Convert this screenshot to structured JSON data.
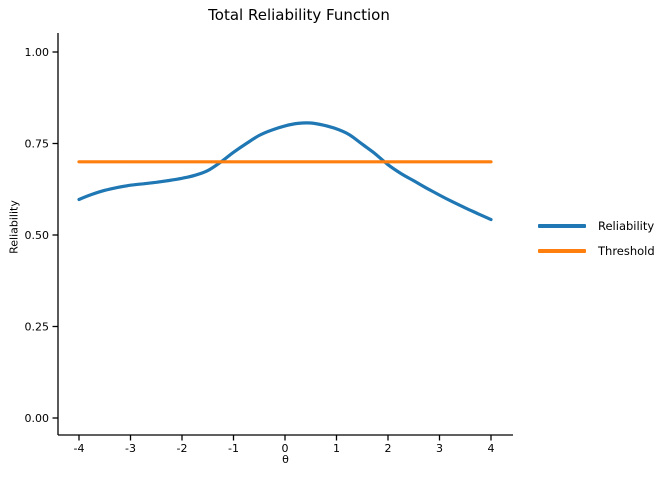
{
  "chart_data": {
    "type": "line",
    "title": "Total Reliability Function",
    "xlabel": "θ",
    "ylabel": "Reliability",
    "xlim": [
      -4,
      4
    ],
    "ylim": [
      0,
      1
    ],
    "grid": false,
    "legend_position": "right-outside",
    "x_ticks": [
      -4,
      -3,
      -2,
      -1,
      0,
      1,
      2,
      3,
      4
    ],
    "y_ticks": [
      0.0,
      0.25,
      0.5,
      0.75,
      1.0
    ],
    "y_tick_labels": [
      "0.00",
      "0.25",
      "0.50",
      "0.75",
      "1.00"
    ],
    "threshold_value": 0.7,
    "series": [
      {
        "name": "Reliability",
        "color": "#1f77b4",
        "x": [
          -4,
          -3.75,
          -3.5,
          -3.25,
          -3,
          -2.75,
          -2.5,
          -2.25,
          -2,
          -1.75,
          -1.5,
          -1.25,
          -1,
          -0.75,
          -0.5,
          -0.25,
          0,
          0.25,
          0.5,
          0.75,
          1,
          1.25,
          1.5,
          1.75,
          2,
          2.25,
          2.5,
          2.75,
          3,
          3.25,
          3.5,
          3.75,
          4
        ],
        "y": [
          0.597,
          0.611,
          0.622,
          0.63,
          0.636,
          0.64,
          0.644,
          0.649,
          0.655,
          0.663,
          0.676,
          0.699,
          0.726,
          0.75,
          0.772,
          0.787,
          0.798,
          0.805,
          0.806,
          0.8,
          0.79,
          0.774,
          0.748,
          0.722,
          0.692,
          0.668,
          0.648,
          0.628,
          0.609,
          0.591,
          0.574,
          0.558,
          0.542
        ]
      },
      {
        "name": "Threshold",
        "color": "#ff7f0e",
        "x": [
          -4,
          4
        ],
        "y": [
          0.7,
          0.7
        ]
      }
    ]
  }
}
